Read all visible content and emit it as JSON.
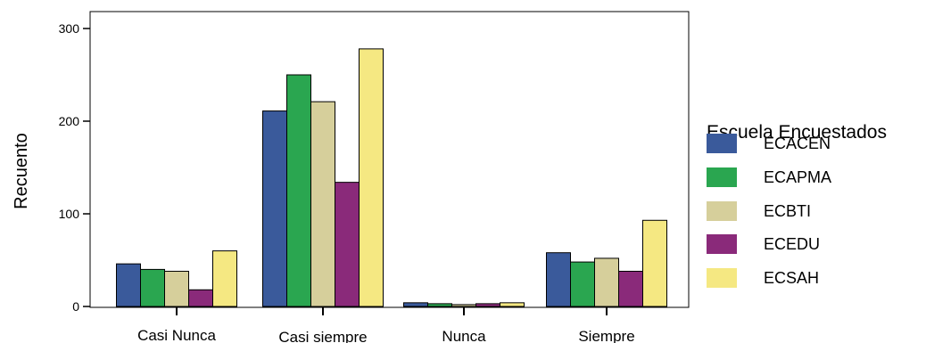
{
  "chart_data": {
    "type": "bar",
    "ylabel": "Recuento",
    "ylim": [
      0,
      320
    ],
    "yticks": [
      0,
      100,
      200,
      300
    ],
    "categories": [
      "Casi Nunca",
      "Casi siempre",
      "Nunca",
      "Siempre"
    ],
    "legend_title": "Escuela Encuestados",
    "legend_position": "right",
    "series": [
      {
        "name": "ECACEN",
        "color": "#3a5a9b",
        "values": [
          46,
          211,
          4,
          58
        ]
      },
      {
        "name": "ECAPMA",
        "color": "#2aa650",
        "values": [
          40,
          250,
          3,
          48
        ]
      },
      {
        "name": "ECBTI",
        "color": "#d6cf9b",
        "values": [
          38,
          221,
          2,
          52
        ]
      },
      {
        "name": "ECEDU",
        "color": "#8a2a7a",
        "values": [
          18,
          134,
          3,
          38
        ]
      },
      {
        "name": "ECSAH",
        "color": "#f5e882",
        "values": [
          60,
          278,
          4,
          93
        ]
      }
    ]
  }
}
